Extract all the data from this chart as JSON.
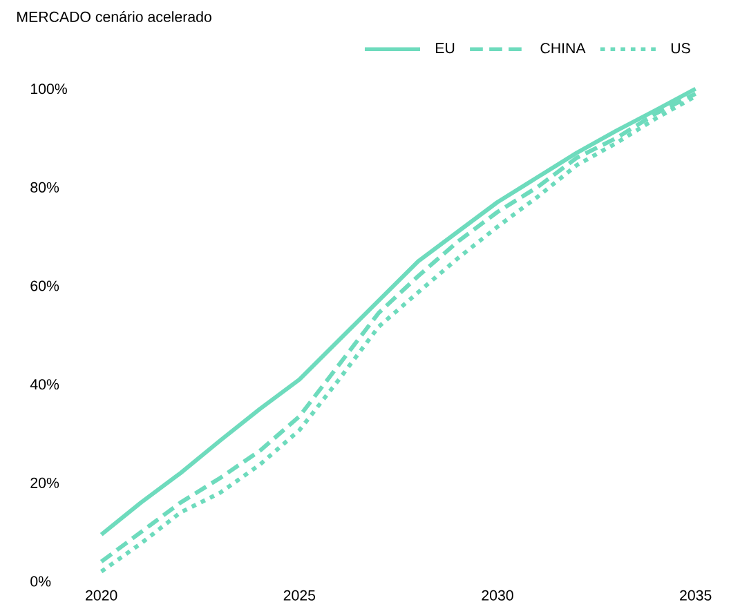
{
  "chart_data": {
    "type": "line",
    "title": "MERCADO cenário acelerado",
    "x": [
      2020,
      2021,
      2022,
      2023,
      2024,
      2025,
      2026,
      2027,
      2028,
      2029,
      2030,
      2031,
      2032,
      2033,
      2034,
      2035
    ],
    "series": [
      {
        "name": "EU",
        "color": "#6edbbd",
        "line_style": "solid",
        "values": [
          9.5,
          16,
          22,
          28.6,
          35,
          41,
          49,
          57,
          65,
          71,
          77,
          82,
          87,
          91.5,
          95.7,
          100
        ]
      },
      {
        "name": "CHINA",
        "color": "#6edbbd",
        "line_style": "dashed",
        "values": [
          4,
          10,
          16,
          21,
          26.5,
          33.5,
          44,
          54.5,
          62,
          69,
          75,
          80,
          86,
          90,
          95,
          99
        ]
      },
      {
        "name": "US",
        "color": "#6edbbd",
        "line_style": "dotted",
        "values": [
          2,
          7.7,
          14,
          18,
          23.7,
          30.7,
          41,
          51.7,
          58.7,
          65.6,
          72,
          78,
          84.5,
          89,
          94,
          98.5
        ]
      }
    ],
    "xlim": [
      2020,
      2035
    ],
    "ylim": [
      0,
      100
    ],
    "xticks": [
      2020,
      2025,
      2030,
      2035
    ],
    "yticks": [
      {
        "value": 0,
        "label": "0%"
      },
      {
        "value": 20,
        "label": "20%"
      },
      {
        "value": 40,
        "label": "40%"
      },
      {
        "value": 60,
        "label": "60%"
      },
      {
        "value": 80,
        "label": "80%"
      },
      {
        "value": 100,
        "label": "100%"
      }
    ],
    "grid": false,
    "legend": "top right"
  }
}
